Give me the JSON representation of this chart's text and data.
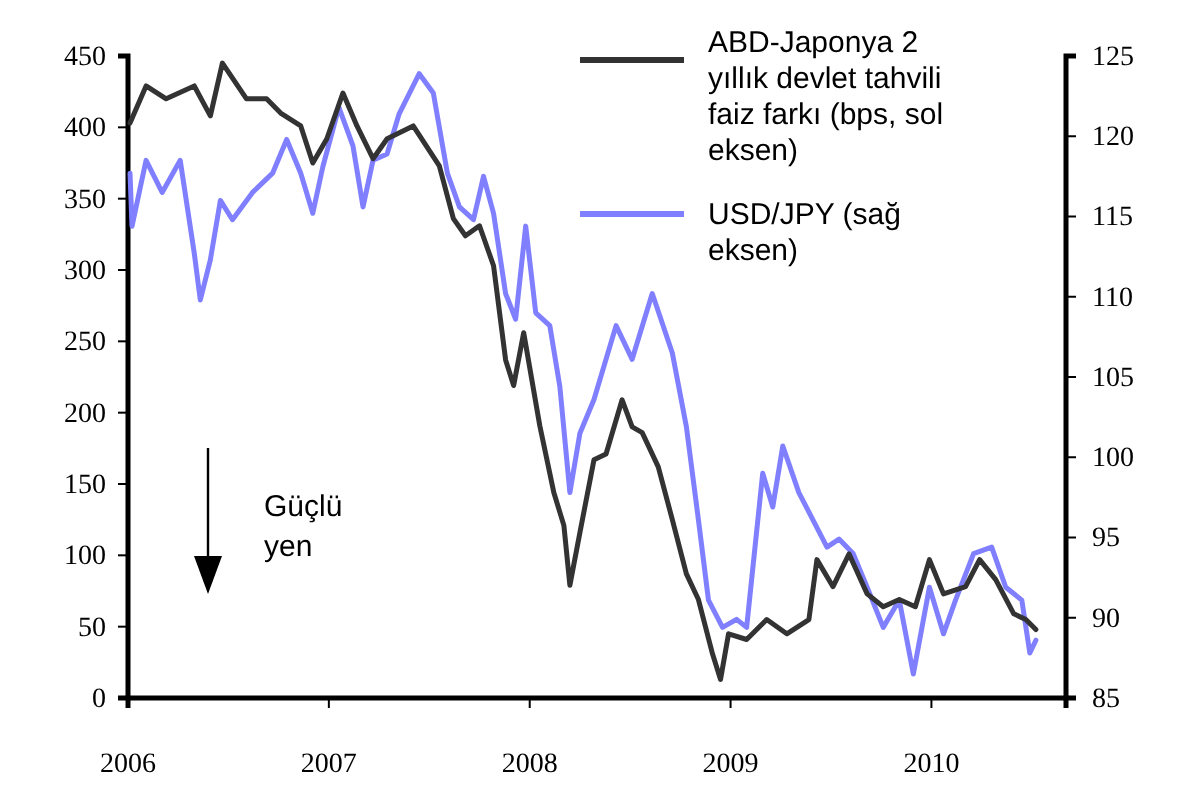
{
  "chart_data": {
    "type": "line",
    "legend": "top right",
    "annotations": [
      "Güçlü yen"
    ],
    "xlim": [
      2006,
      2010.67
    ],
    "xticks": [
      2006,
      2007,
      2008,
      2009,
      2010
    ],
    "ylim": [
      0,
      450
    ],
    "yticks": [
      0,
      50,
      100,
      150,
      200,
      250,
      300,
      350,
      400,
      450
    ],
    "y2lim": [
      85,
      125
    ],
    "y2ticks": [
      85,
      90,
      95,
      100,
      105,
      110,
      115,
      120,
      125
    ],
    "series": [
      {
        "name": "ABD-Japonya 2 yıllık devlet tahvili faiz farkı (bps, sol eksen)",
        "color": "#333333",
        "x": [
          2006.01,
          2006.09,
          2006.19,
          2006.33,
          2006.41,
          2006.47,
          2006.59,
          2006.69,
          2006.76,
          2006.86,
          2006.92,
          2006.99,
          2007.07,
          2007.14,
          2007.22,
          2007.29,
          2007.42,
          2007.55,
          2007.62,
          2007.68,
          2007.75,
          2007.82,
          2007.88,
          2007.92,
          2007.97,
          2008.05,
          2008.12,
          2008.17,
          2008.2,
          2008.25,
          2008.32,
          2008.38,
          2008.46,
          2008.51,
          2008.56,
          2008.64,
          2008.71,
          2008.78,
          2008.84,
          2008.91,
          2008.95,
          2008.99,
          2009.08,
          2009.18,
          2009.28,
          2009.39,
          2009.43,
          2009.51,
          2009.59,
          2009.68,
          2009.76,
          2009.84,
          2009.92,
          2009.99,
          2010.06,
          2010.17,
          2010.24,
          2010.32,
          2010.41,
          2010.47,
          2010.52
        ],
        "values": [
          403,
          429,
          420,
          429,
          408,
          445,
          420,
          420,
          410,
          401,
          375,
          392,
          424,
          401,
          378,
          392,
          401,
          373,
          336,
          324,
          331,
          303,
          237,
          219,
          256,
          191,
          144,
          121,
          79,
          116,
          167,
          171,
          209,
          190,
          186,
          162,
          125,
          87,
          69,
          31,
          13,
          45,
          41,
          55,
          45,
          55,
          97,
          78,
          101,
          73,
          64,
          69,
          64,
          97,
          73,
          78,
          97,
          83,
          59,
          55,
          48
        ]
      },
      {
        "name": "USD/JPY (sağ eksen)",
        "color": "#7f7fff",
        "axis": "y2",
        "x": [
          2006.01,
          2006.02,
          2006.09,
          2006.17,
          2006.26,
          2006.33,
          2006.36,
          2006.41,
          2006.46,
          2006.52,
          2006.62,
          2006.72,
          2006.79,
          2006.86,
          2006.92,
          2006.97,
          2007.05,
          2007.12,
          2007.17,
          2007.22,
          2007.29,
          2007.35,
          2007.45,
          2007.52,
          2007.59,
          2007.65,
          2007.72,
          2007.77,
          2007.82,
          2007.88,
          2007.93,
          2007.98,
          2008.03,
          2008.1,
          2008.15,
          2008.2,
          2008.25,
          2008.32,
          2008.43,
          2008.51,
          2008.61,
          2008.71,
          2008.78,
          2008.84,
          2008.89,
          2008.96,
          2009.03,
          2009.08,
          2009.16,
          2009.21,
          2009.26,
          2009.34,
          2009.41,
          2009.48,
          2009.54,
          2009.61,
          2009.68,
          2009.76,
          2009.84,
          2009.91,
          2009.99,
          2010.06,
          2010.12,
          2010.21,
          2010.3,
          2010.37,
          2010.45,
          2010.49,
          2010.52
        ],
        "values": [
          117.7,
          114.4,
          118.5,
          116.5,
          118.5,
          112.7,
          109.8,
          112.3,
          116.0,
          114.8,
          116.5,
          117.7,
          119.8,
          117.7,
          115.2,
          118.1,
          121.8,
          119.4,
          115.6,
          118.5,
          118.9,
          121.4,
          123.9,
          122.7,
          117.7,
          115.6,
          114.8,
          117.5,
          115.2,
          110.2,
          108.6,
          114.4,
          109.0,
          108.2,
          104.4,
          97.8,
          101.5,
          103.6,
          108.2,
          106.1,
          110.2,
          106.5,
          101.9,
          96.1,
          91.1,
          89.4,
          89.9,
          89.4,
          99.0,
          96.9,
          100.7,
          97.8,
          96.1,
          94.4,
          94.9,
          94.0,
          91.9,
          89.4,
          91.1,
          86.5,
          91.9,
          89.0,
          91.1,
          94.0,
          94.4,
          91.9,
          91.1,
          87.8,
          88.6
        ]
      }
    ]
  }
}
